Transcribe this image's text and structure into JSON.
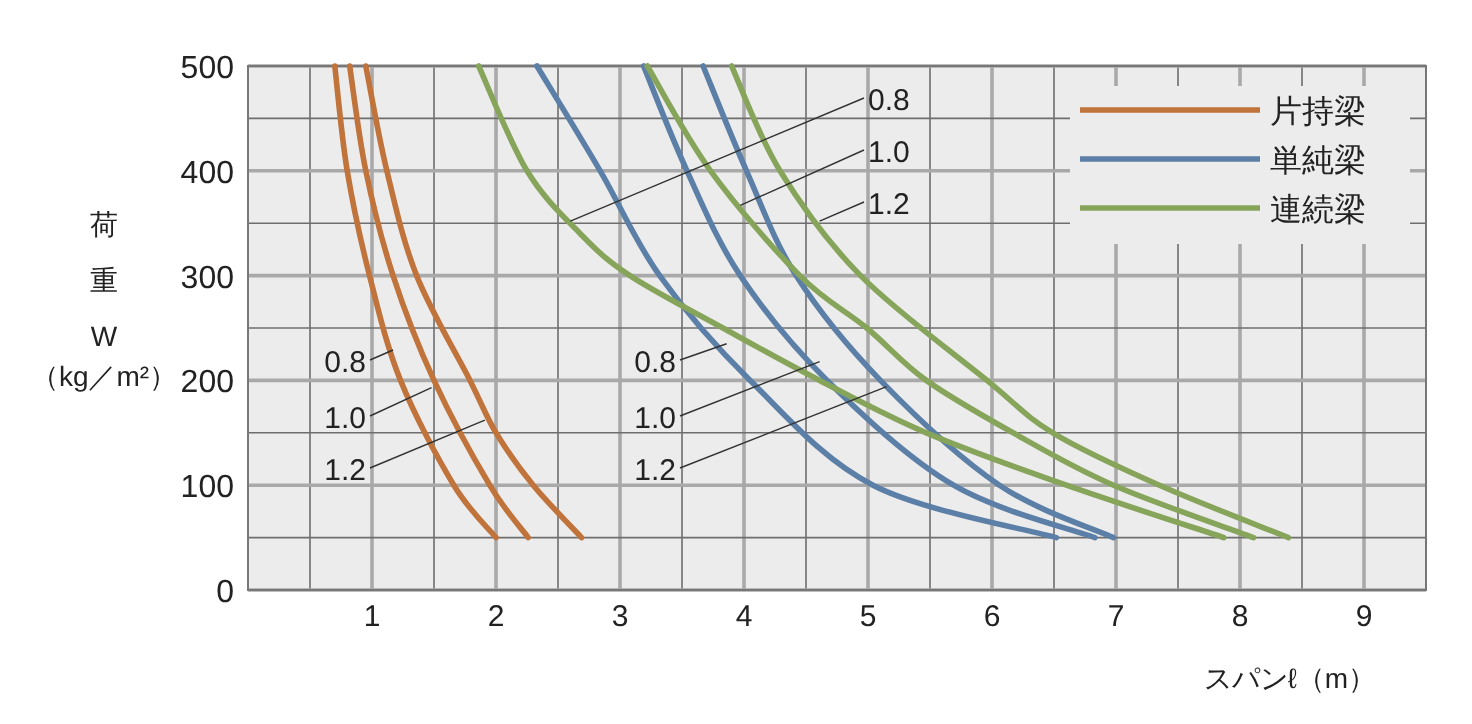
{
  "chart_data": {
    "type": "line",
    "xlabel": "スパンℓ（m）",
    "ylabel": "荷重W（kg／m²）",
    "xlim": [
      0,
      9.5
    ],
    "ylim": [
      0,
      500
    ],
    "xticks": [
      {
        "value": 0.5,
        "label": null
      },
      1,
      {
        "value": 1.5,
        "label": null
      },
      2,
      {
        "value": 2.5,
        "label": null
      },
      3,
      {
        "value": 3.5,
        "label": null
      },
      4,
      {
        "value": 4.5,
        "label": null
      },
      5,
      {
        "value": 5.5,
        "label": null
      },
      6,
      {
        "value": 6.5,
        "label": null
      },
      7,
      {
        "value": 7.5,
        "label": null
      },
      8,
      {
        "value": 8.5,
        "label": null
      },
      9
    ],
    "yticks": [
      0,
      {
        "value": 50,
        "label": null
      },
      100,
      {
        "value": 150,
        "label": null
      },
      200,
      {
        "value": 250,
        "label": null
      },
      300,
      {
        "value": 350,
        "label": null
      },
      400,
      {
        "value": 450,
        "label": null
      },
      500
    ],
    "grid": true,
    "legend": "top right",
    "marker": "none",
    "line_style": "solid",
    "series": [
      {
        "name": "片持梁",
        "color": "#c0733a",
        "x": [
          0.7,
          0.8,
          0.98,
          1.23,
          1.66,
          2.0
        ],
        "values": [
          500,
          400,
          300,
          200,
          100,
          50
        ]
      },
      {
        "color": "#c0733a",
        "x": [
          0.82,
          0.95,
          1.17,
          1.5,
          1.95,
          2.26
        ],
        "values": [
          500,
          400,
          300,
          200,
          100,
          50
        ]
      },
      {
        "color": "#c0733a",
        "x": [
          0.95,
          1.12,
          1.36,
          1.79,
          2.0,
          2.3,
          2.69
        ],
        "values": [
          500,
          400,
          300,
          200,
          150,
          100,
          50
        ]
      },
      {
        "name": "単純梁",
        "color": "#5b7fa6",
        "x": [
          2.33,
          2.84,
          3.32,
          4.05,
          5.04,
          6.52
        ],
        "values": [
          500,
          400,
          300,
          200,
          100,
          50
        ]
      },
      {
        "color": "#5b7fa6",
        "x": [
          3.19,
          3.54,
          3.97,
          4.67,
          5.69,
          6.83
        ],
        "values": [
          500,
          400,
          300,
          200,
          100,
          50
        ]
      },
      {
        "color": "#5b7fa6",
        "x": [
          3.67,
          4.02,
          4.42,
          5.1,
          6.06,
          6.98
        ],
        "values": [
          500,
          400,
          300,
          200,
          100,
          50
        ]
      },
      {
        "name": "連続梁",
        "color": "#86a45a",
        "x": [
          1.86,
          2.25,
          2.68,
          3.08,
          3.83,
          4.61,
          5.47,
          6.6,
          7.87
        ],
        "values": [
          500,
          400,
          340,
          300,
          250,
          200,
          150,
          100,
          50
        ]
      },
      {
        "color": "#86a45a",
        "x": [
          3.22,
          3.73,
          4.45,
          4.99,
          5.47,
          6.17,
          6.98,
          8.11
        ],
        "values": [
          500,
          400,
          300,
          250,
          200,
          150,
          100,
          50
        ]
      },
      {
        "color": "#86a45a",
        "x": [
          3.9,
          4.29,
          4.94,
          5.96,
          6.49,
          7.35,
          8.39
        ],
        "values": [
          500,
          400,
          300,
          200,
          150,
          100,
          50
        ]
      }
    ],
    "annotations": [
      {
        "text": "0.8",
        "x": 1.17,
        "y": 229
      },
      {
        "text": "0.8",
        "x": 3.86,
        "y": 235
      },
      {
        "text": "0.8",
        "x": 2.6,
        "y": 352
      },
      {
        "text": "1.0",
        "x": 1.48,
        "y": 193
      },
      {
        "text": "1.0",
        "x": 4.61,
        "y": 218
      },
      {
        "text": "1.0",
        "x": 3.97,
        "y": 367
      },
      {
        "text": "1.2",
        "x": 4.61,
        "y": 352
      },
      {
        "text": "1.2",
        "x": 5.15,
        "y": 194
      },
      {
        "text": "1.2",
        "x": 1.91,
        "y": 162
      }
    ]
  }
}
